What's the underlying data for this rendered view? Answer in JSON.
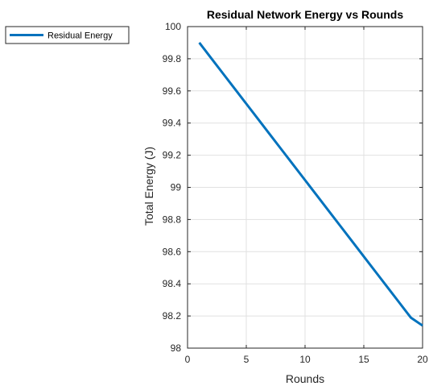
{
  "chart_data": {
    "type": "line",
    "title": "Residual Network Energy vs Rounds",
    "xlabel": "Rounds",
    "ylabel": "Total Energy (J)",
    "xlim": [
      0,
      20
    ],
    "ylim": [
      98,
      100
    ],
    "xticks": [
      0,
      5,
      10,
      15,
      20
    ],
    "yticks": [
      98,
      98.2,
      98.4,
      98.6,
      98.8,
      99,
      99.2,
      99.4,
      99.6,
      99.8,
      100
    ],
    "xtick_labels": [
      "0",
      "5",
      "10",
      "15",
      "20"
    ],
    "ytick_labels": [
      "98",
      "98.2",
      "98.4",
      "98.6",
      "98.8",
      "99",
      "99.2",
      "99.4",
      "99.6",
      "99.8",
      "100"
    ],
    "grid": true,
    "legend_position": "outside-top-left",
    "series": [
      {
        "name": "Residual Energy",
        "color": "#0072BD",
        "x": [
          1,
          2,
          3,
          4,
          5,
          6,
          7,
          8,
          9,
          10,
          11,
          12,
          13,
          14,
          15,
          16,
          17,
          18,
          19,
          20
        ],
        "y": [
          99.9,
          99.805,
          99.71,
          99.615,
          99.52,
          99.425,
          99.33,
          99.235,
          99.14,
          99.045,
          98.95,
          98.855,
          98.76,
          98.665,
          98.57,
          98.475,
          98.38,
          98.285,
          98.19,
          98.14
        ]
      }
    ]
  }
}
